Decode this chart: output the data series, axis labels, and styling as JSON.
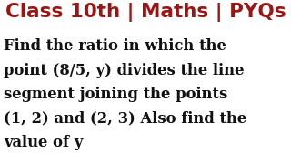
{
  "title": "Class 10th | Maths | PYQs",
  "title_color": "#9b1515",
  "body_lines": [
    "Find the ratio in which the",
    "point (8/5, y) divides the line",
    "segment joining the points",
    "(1, 2) and (2, 3) Also find the",
    "value of y"
  ],
  "body_color": "#111111",
  "background_color": "#ffffff",
  "title_fontsize": 15.5,
  "body_fontsize": 11.8,
  "title_bg_color": "#ffffff"
}
